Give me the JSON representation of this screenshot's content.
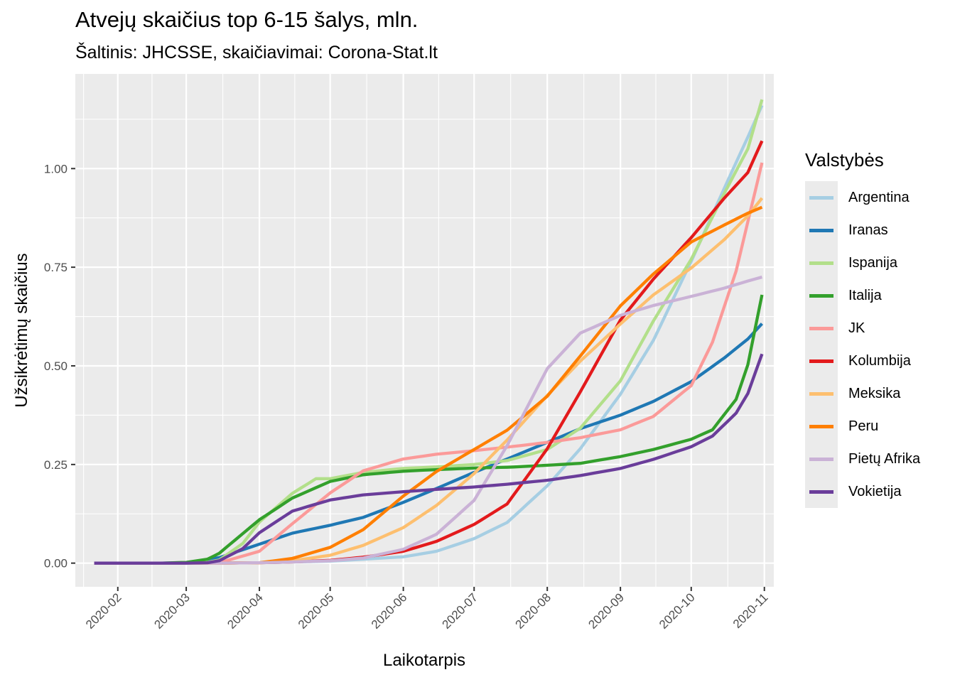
{
  "chart_data": {
    "type": "line",
    "title": "Atvejų skaičius top 6-15 šalys, mln.",
    "subtitle": "Šaltinis: JHCSSE, skaičiavimai: Corona-Stat.lt",
    "xlabel": "Laikotarpis",
    "ylabel": "Užsikrėtimų skaičius",
    "x_ticks": [
      "2020-02",
      "2020-03",
      "2020-04",
      "2020-05",
      "2020-06",
      "2020-07",
      "2020-08",
      "2020-09",
      "2020-10",
      "2020-11"
    ],
    "y_ticks": [
      "0.00",
      "0.25",
      "0.50",
      "0.75",
      "1.00"
    ],
    "xlim": [
      "2020-01-14",
      "2020-11-05"
    ],
    "ylim": [
      -0.06,
      1.24
    ],
    "grid": true,
    "legend_title": "Valstybės",
    "legend_position": "right",
    "series": [
      {
        "name": "Argentina",
        "color": "#a6cee3",
        "points": [
          [
            "2020-01-22",
            0
          ],
          [
            "2020-03-01",
            0
          ],
          [
            "2020-04-01",
            0.001
          ],
          [
            "2020-05-01",
            0.005
          ],
          [
            "2020-06-01",
            0.016
          ],
          [
            "2020-06-15",
            0.03
          ],
          [
            "2020-07-01",
            0.062
          ],
          [
            "2020-07-15",
            0.103
          ],
          [
            "2020-08-01",
            0.196
          ],
          [
            "2020-08-15",
            0.29
          ],
          [
            "2020-09-01",
            0.428
          ],
          [
            "2020-09-15",
            0.565
          ],
          [
            "2020-10-01",
            0.765
          ],
          [
            "2020-10-15",
            0.95
          ],
          [
            "2020-10-25",
            1.08
          ],
          [
            "2020-10-31",
            1.16
          ]
        ]
      },
      {
        "name": "Iranas",
        "color": "#1f78b4",
        "points": [
          [
            "2020-01-22",
            0
          ],
          [
            "2020-02-19",
            0
          ],
          [
            "2020-03-01",
            0.001
          ],
          [
            "2020-03-15",
            0.014
          ],
          [
            "2020-04-01",
            0.048
          ],
          [
            "2020-04-15",
            0.076
          ],
          [
            "2020-05-01",
            0.096
          ],
          [
            "2020-05-15",
            0.116
          ],
          [
            "2020-06-01",
            0.154
          ],
          [
            "2020-06-15",
            0.189
          ],
          [
            "2020-07-01",
            0.23
          ],
          [
            "2020-07-15",
            0.264
          ],
          [
            "2020-08-01",
            0.306
          ],
          [
            "2020-08-15",
            0.341
          ],
          [
            "2020-09-01",
            0.375
          ],
          [
            "2020-09-15",
            0.41
          ],
          [
            "2020-10-01",
            0.46
          ],
          [
            "2020-10-15",
            0.52
          ],
          [
            "2020-10-25",
            0.568
          ],
          [
            "2020-10-31",
            0.607
          ]
        ]
      },
      {
        "name": "Ispanija",
        "color": "#b2df8a",
        "points": [
          [
            "2020-01-22",
            0
          ],
          [
            "2020-02-29",
            0
          ],
          [
            "2020-03-10",
            0.002
          ],
          [
            "2020-03-15",
            0.008
          ],
          [
            "2020-03-25",
            0.05
          ],
          [
            "2020-04-01",
            0.104
          ],
          [
            "2020-04-15",
            0.177
          ],
          [
            "2020-04-25",
            0.214
          ],
          [
            "2020-05-01",
            0.214
          ],
          [
            "2020-05-15",
            0.23
          ],
          [
            "2020-06-01",
            0.24
          ],
          [
            "2020-06-15",
            0.244
          ],
          [
            "2020-07-01",
            0.25
          ],
          [
            "2020-07-15",
            0.26
          ],
          [
            "2020-08-01",
            0.288
          ],
          [
            "2020-08-15",
            0.342
          ],
          [
            "2020-09-01",
            0.462
          ],
          [
            "2020-09-15",
            0.614
          ],
          [
            "2020-10-01",
            0.77
          ],
          [
            "2020-10-15",
            0.937
          ],
          [
            "2020-10-25",
            1.05
          ],
          [
            "2020-10-31",
            1.175
          ]
        ]
      },
      {
        "name": "Italija",
        "color": "#33a02c",
        "points": [
          [
            "2020-01-22",
            0
          ],
          [
            "2020-02-20",
            0
          ],
          [
            "2020-03-01",
            0.002
          ],
          [
            "2020-03-10",
            0.01
          ],
          [
            "2020-03-15",
            0.025
          ],
          [
            "2020-03-25",
            0.075
          ],
          [
            "2020-04-01",
            0.11
          ],
          [
            "2020-04-15",
            0.165
          ],
          [
            "2020-05-01",
            0.207
          ],
          [
            "2020-05-15",
            0.224
          ],
          [
            "2020-06-01",
            0.233
          ],
          [
            "2020-06-15",
            0.237
          ],
          [
            "2020-07-01",
            0.241
          ],
          [
            "2020-07-15",
            0.243
          ],
          [
            "2020-08-01",
            0.248
          ],
          [
            "2020-08-15",
            0.253
          ],
          [
            "2020-09-01",
            0.27
          ],
          [
            "2020-09-15",
            0.288
          ],
          [
            "2020-10-01",
            0.314
          ],
          [
            "2020-10-10",
            0.338
          ],
          [
            "2020-10-20",
            0.415
          ],
          [
            "2020-10-25",
            0.503
          ],
          [
            "2020-10-31",
            0.68
          ]
        ]
      },
      {
        "name": "JK",
        "color": "#fb9a99",
        "points": [
          [
            "2020-01-22",
            0
          ],
          [
            "2020-03-01",
            0
          ],
          [
            "2020-03-15",
            0.001
          ],
          [
            "2020-04-01",
            0.03
          ],
          [
            "2020-04-15",
            0.1
          ],
          [
            "2020-05-01",
            0.178
          ],
          [
            "2020-05-15",
            0.234
          ],
          [
            "2020-06-01",
            0.264
          ],
          [
            "2020-06-15",
            0.276
          ],
          [
            "2020-07-01",
            0.285
          ],
          [
            "2020-07-15",
            0.294
          ],
          [
            "2020-08-01",
            0.306
          ],
          [
            "2020-08-15",
            0.318
          ],
          [
            "2020-09-01",
            0.338
          ],
          [
            "2020-09-15",
            0.372
          ],
          [
            "2020-10-01",
            0.45
          ],
          [
            "2020-10-10",
            0.56
          ],
          [
            "2020-10-20",
            0.74
          ],
          [
            "2020-10-31",
            1.015
          ]
        ]
      },
      {
        "name": "Kolumbija",
        "color": "#e31a1c",
        "points": [
          [
            "2020-01-22",
            0
          ],
          [
            "2020-03-15",
            0
          ],
          [
            "2020-04-01",
            0.001
          ],
          [
            "2020-04-15",
            0.003
          ],
          [
            "2020-05-01",
            0.007
          ],
          [
            "2020-05-15",
            0.015
          ],
          [
            "2020-06-01",
            0.03
          ],
          [
            "2020-06-15",
            0.055
          ],
          [
            "2020-07-01",
            0.098
          ],
          [
            "2020-07-15",
            0.15
          ],
          [
            "2020-08-01",
            0.29
          ],
          [
            "2020-08-15",
            0.434
          ],
          [
            "2020-09-01",
            0.616
          ],
          [
            "2020-09-15",
            0.72
          ],
          [
            "2020-10-01",
            0.825
          ],
          [
            "2020-10-15",
            0.925
          ],
          [
            "2020-10-25",
            0.99
          ],
          [
            "2020-10-31",
            1.07
          ]
        ]
      },
      {
        "name": "Meksika",
        "color": "#fdbf6f",
        "points": [
          [
            "2020-01-22",
            0
          ],
          [
            "2020-03-01",
            0
          ],
          [
            "2020-03-15",
            0.0
          ],
          [
            "2020-04-01",
            0.001
          ],
          [
            "2020-04-15",
            0.006
          ],
          [
            "2020-05-01",
            0.02
          ],
          [
            "2020-05-15",
            0.045
          ],
          [
            "2020-06-01",
            0.09
          ],
          [
            "2020-06-15",
            0.146
          ],
          [
            "2020-07-01",
            0.227
          ],
          [
            "2020-07-15",
            0.312
          ],
          [
            "2020-08-01",
            0.425
          ],
          [
            "2020-08-15",
            0.512
          ],
          [
            "2020-09-01",
            0.606
          ],
          [
            "2020-09-15",
            0.68
          ],
          [
            "2020-10-01",
            0.748
          ],
          [
            "2020-10-15",
            0.82
          ],
          [
            "2020-10-25",
            0.88
          ],
          [
            "2020-10-31",
            0.925
          ]
        ]
      },
      {
        "name": "Peru",
        "color": "#ff7f00",
        "points": [
          [
            "2020-01-22",
            0
          ],
          [
            "2020-03-05",
            0
          ],
          [
            "2020-03-15",
            0.0
          ],
          [
            "2020-04-01",
            0.001
          ],
          [
            "2020-04-15",
            0.012
          ],
          [
            "2020-05-01",
            0.04
          ],
          [
            "2020-05-15",
            0.085
          ],
          [
            "2020-06-01",
            0.17
          ],
          [
            "2020-06-15",
            0.232
          ],
          [
            "2020-07-01",
            0.288
          ],
          [
            "2020-07-15",
            0.337
          ],
          [
            "2020-08-01",
            0.423
          ],
          [
            "2020-08-15",
            0.525
          ],
          [
            "2020-09-01",
            0.652
          ],
          [
            "2020-09-15",
            0.733
          ],
          [
            "2020-10-01",
            0.814
          ],
          [
            "2020-10-15",
            0.857
          ],
          [
            "2020-10-25",
            0.887
          ],
          [
            "2020-10-31",
            0.902
          ]
        ]
      },
      {
        "name": "Pietų Afrika",
        "color": "#cab2d6",
        "points": [
          [
            "2020-01-22",
            0
          ],
          [
            "2020-03-05",
            0
          ],
          [
            "2020-03-15",
            0.0
          ],
          [
            "2020-04-01",
            0.001
          ],
          [
            "2020-04-15",
            0.003
          ],
          [
            "2020-05-01",
            0.006
          ],
          [
            "2020-05-15",
            0.013
          ],
          [
            "2020-06-01",
            0.035
          ],
          [
            "2020-06-15",
            0.073
          ],
          [
            "2020-07-01",
            0.159
          ],
          [
            "2020-07-15",
            0.298
          ],
          [
            "2020-08-01",
            0.493
          ],
          [
            "2020-08-15",
            0.583
          ],
          [
            "2020-09-01",
            0.628
          ],
          [
            "2020-09-15",
            0.653
          ],
          [
            "2020-10-01",
            0.676
          ],
          [
            "2020-10-15",
            0.697
          ],
          [
            "2020-10-25",
            0.715
          ],
          [
            "2020-10-31",
            0.725
          ]
        ]
      },
      {
        "name": "Vokietija",
        "color": "#6a3d9a",
        "points": [
          [
            "2020-01-22",
            0
          ],
          [
            "2020-03-01",
            0.0
          ],
          [
            "2020-03-10",
            0.001
          ],
          [
            "2020-03-15",
            0.006
          ],
          [
            "2020-03-25",
            0.037
          ],
          [
            "2020-04-01",
            0.077
          ],
          [
            "2020-04-15",
            0.132
          ],
          [
            "2020-05-01",
            0.16
          ],
          [
            "2020-05-15",
            0.173
          ],
          [
            "2020-06-01",
            0.181
          ],
          [
            "2020-06-15",
            0.187
          ],
          [
            "2020-07-01",
            0.193
          ],
          [
            "2020-07-15",
            0.2
          ],
          [
            "2020-08-01",
            0.21
          ],
          [
            "2020-08-15",
            0.222
          ],
          [
            "2020-09-01",
            0.24
          ],
          [
            "2020-09-15",
            0.263
          ],
          [
            "2020-10-01",
            0.295
          ],
          [
            "2020-10-10",
            0.322
          ],
          [
            "2020-10-20",
            0.38
          ],
          [
            "2020-10-25",
            0.43
          ],
          [
            "2020-10-31",
            0.53
          ]
        ]
      }
    ]
  }
}
